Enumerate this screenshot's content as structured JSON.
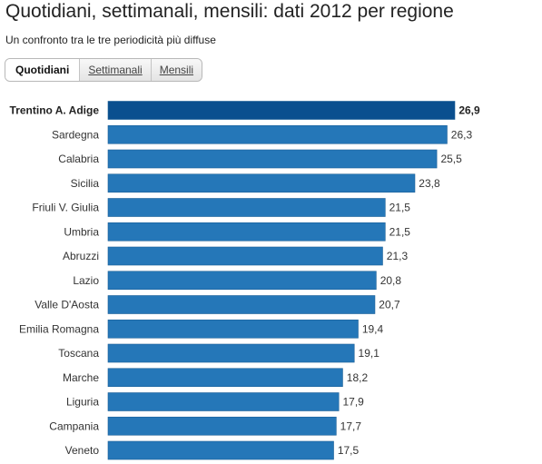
{
  "header": {
    "title": "Quotidiani, settimanali, mensili: dati 2012 per regione",
    "subtitle": "Un confronto tra le tre periodicità più diffuse"
  },
  "tabs": [
    {
      "label": "Quotidiani",
      "active": true
    },
    {
      "label": "Settimanali",
      "active": false
    },
    {
      "label": "Mensili",
      "active": false
    }
  ],
  "colors": {
    "bar": "#2577b8",
    "bar_highlight": "#0a4f8f",
    "bar_border": "#1b5f96"
  },
  "chart_data": {
    "type": "bar",
    "orientation": "horizontal",
    "categories": [
      "Trentino A. Adige",
      "Sardegna",
      "Calabria",
      "Sicilia",
      "Friuli V. Giulia",
      "Umbria",
      "Abruzzi",
      "Lazio",
      "Valle D'Aosta",
      "Emilia Romagna",
      "Toscana",
      "Marche",
      "Liguria",
      "Campania",
      "Veneto"
    ],
    "values": [
      26.9,
      26.3,
      25.5,
      23.8,
      21.5,
      21.5,
      21.3,
      20.8,
      20.7,
      19.4,
      19.1,
      18.2,
      17.9,
      17.7,
      17.5
    ],
    "value_labels": [
      "26,9",
      "26,3",
      "25,5",
      "23,8",
      "21,5",
      "21,5",
      "21,3",
      "20,8",
      "20,7",
      "19,4",
      "19,1",
      "18,2",
      "17,9",
      "17,7",
      "17,5"
    ],
    "highlighted_category": "Trentino A. Adige",
    "xlim": [
      0,
      26.9
    ],
    "grid": false,
    "legend": "none"
  }
}
